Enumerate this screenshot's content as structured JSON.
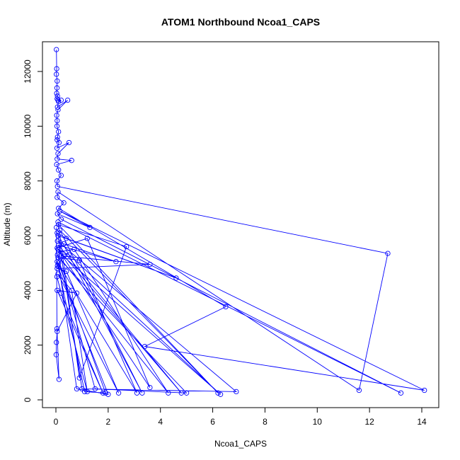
{
  "chart_data": {
    "type": "line",
    "title": "ATOM1 Northbound Ncoa1_CAPS",
    "xlabel": "Ncoa1_CAPS",
    "ylabel": "Altitude (m)",
    "xlim": [
      0,
      14
    ],
    "ylim": [
      0,
      12800
    ],
    "xticks": [
      0,
      2,
      4,
      6,
      8,
      10,
      12,
      14
    ],
    "yticks": [
      0,
      2000,
      4000,
      6000,
      8000,
      10000,
      12000
    ],
    "grid": false,
    "legend": "none",
    "markers": "open-circle",
    "color": "#0000ff",
    "series": [
      {
        "x": [
          0.02,
          0.03,
          0.02,
          0.05,
          0.04,
          0.03,
          0.06,
          0.05,
          0.08,
          0.2,
          0.1,
          0.06,
          0.45,
          0.08,
          0.03,
          0.05,
          0.04,
          0.1,
          0.06,
          0.05,
          0.12,
          0.04,
          0.5,
          0.08,
          0.05,
          0.6,
          0.03,
          0.1,
          0.2,
          0.04,
          0.06,
          12.7,
          11.6,
          0.08,
          0.05,
          0.3,
          0.1,
          6.5,
          3.4,
          14.1,
          0.15,
          1.3,
          0.06,
          0.2,
          13.2,
          0.08,
          0.9,
          2.7,
          0.1,
          6.2,
          0.15,
          3.3,
          0.05,
          0.4,
          4.6,
          0.08,
          1.0,
          6.9,
          0.06,
          0.3,
          2.3,
          0.1,
          4.8,
          0.05,
          1.2,
          3.6,
          0.08,
          0.5,
          6.3,
          0.1,
          0.7,
          4.3,
          0.06,
          1.5,
          5.0,
          0.08,
          0.9,
          3.1,
          0.05,
          1.1,
          1.9,
          0.1,
          0.8,
          2.0,
          0.06,
          0.3,
          3.6,
          0.05,
          0.4,
          2.4,
          0.08,
          0.6,
          1.2,
          0.04,
          0.2,
          1.8,
          0.05,
          0.8,
          0.05,
          0.02,
          0.01,
          0.12,
          0.04,
          0.02
        ],
        "y": [
          12800,
          12100,
          11900,
          11650,
          11400,
          11200,
          11100,
          11000,
          10950,
          10950,
          10900,
          10700,
          10950,
          10600,
          10400,
          10200,
          10000,
          9800,
          9600,
          9500,
          9400,
          9200,
          9400,
          9000,
          8800,
          8750,
          8600,
          8400,
          8200,
          8000,
          7800,
          5350,
          350,
          7600,
          7400,
          7200,
          7000,
          3400,
          1950,
          350,
          6900,
          6300,
          6800,
          6600,
          250,
          6500,
          800,
          5600,
          6400,
          250,
          6200,
          250,
          6100,
          5900,
          4450,
          6000,
          400,
          300,
          5800,
          5700,
          5050,
          5650,
          250,
          5550,
          5900,
          450,
          5500,
          5300,
          200,
          5400,
          5500,
          250,
          5300,
          400,
          250,
          5200,
          5100,
          250,
          5050,
          300,
          250,
          5000,
          400,
          200,
          4900,
          5250,
          4950,
          4800,
          4700,
          250,
          4600,
          4000,
          300,
          4500,
          3900,
          250,
          4000,
          3900,
          2500,
          2100,
          1650,
          750,
          2600,
          6300
        ]
      }
    ]
  }
}
